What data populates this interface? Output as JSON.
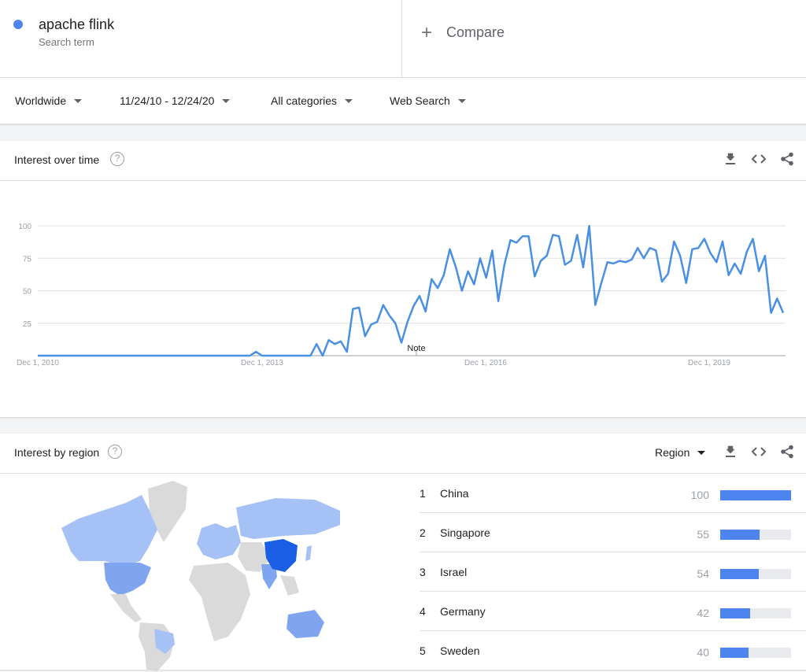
{
  "search": {
    "term": "apache flink",
    "term_sub": "Search term",
    "term_color": "#4e84ef",
    "compare_label": "Compare"
  },
  "filters": {
    "region": "Worldwide",
    "date_range": "11/24/10 - 12/24/20",
    "category": "All categories",
    "search_type": "Web Search"
  },
  "interest_over_time": {
    "title": "Interest over time",
    "help_glyph": "?",
    "note_label": "Note"
  },
  "chart_data": {
    "type": "line",
    "title": "",
    "xlabel": "",
    "ylabel": "",
    "ylim": [
      0,
      100
    ],
    "yticks": [
      "100",
      "75",
      "50",
      "25"
    ],
    "xtick_labels": [
      "Dec 1, 2010",
      "Dec 1, 2013",
      "Dec 1, 2016",
      "Dec 1, 2019"
    ],
    "grid": true,
    "color": "#4a90e2",
    "series": [
      {
        "values": [
          0,
          0,
          0,
          0,
          0,
          0,
          0,
          0,
          0,
          0,
          0,
          0,
          0,
          0,
          0,
          0,
          0,
          0,
          0,
          0,
          0,
          0,
          0,
          0,
          0,
          0,
          0,
          0,
          0,
          0,
          0,
          0,
          0,
          0,
          0,
          0,
          3,
          0,
          0,
          0,
          0,
          0,
          0,
          0,
          0,
          0,
          9,
          0,
          12,
          9,
          11,
          3,
          36,
          37,
          15,
          24,
          26,
          39,
          31,
          25,
          10,
          26,
          38,
          46,
          34,
          59,
          52,
          62,
          82,
          68,
          50,
          65,
          55,
          75,
          60,
          81,
          42,
          70,
          89,
          87,
          92,
          92,
          61,
          73,
          77,
          93,
          92,
          70,
          73,
          93,
          68,
          100,
          39,
          56,
          72,
          71,
          73,
          72,
          74,
          83,
          75,
          83,
          81,
          57,
          63,
          88,
          77,
          56,
          82,
          83,
          90,
          79,
          72,
          88,
          62,
          71,
          63,
          80,
          90,
          65,
          77,
          33,
          44,
          33
        ]
      }
    ]
  },
  "interest_by_region": {
    "title": "Interest by region",
    "help_glyph": "?",
    "resolution_label": "Region",
    "rows": [
      {
        "rank": "1",
        "name": "China",
        "value": "100",
        "level": 1.0
      },
      {
        "rank": "2",
        "name": "Singapore",
        "value": "55",
        "level": 0.55
      },
      {
        "rank": "3",
        "name": "Israel",
        "value": "54",
        "level": 0.54
      },
      {
        "rank": "4",
        "name": "Germany",
        "value": "42",
        "level": 0.42
      },
      {
        "rank": "5",
        "name": "Sweden",
        "value": "40",
        "level": 0.4
      }
    ]
  },
  "icons": {
    "download": "download-icon",
    "embed": "embed-code-icon",
    "share": "share-icon",
    "dropdown": "chevron-down-icon"
  }
}
